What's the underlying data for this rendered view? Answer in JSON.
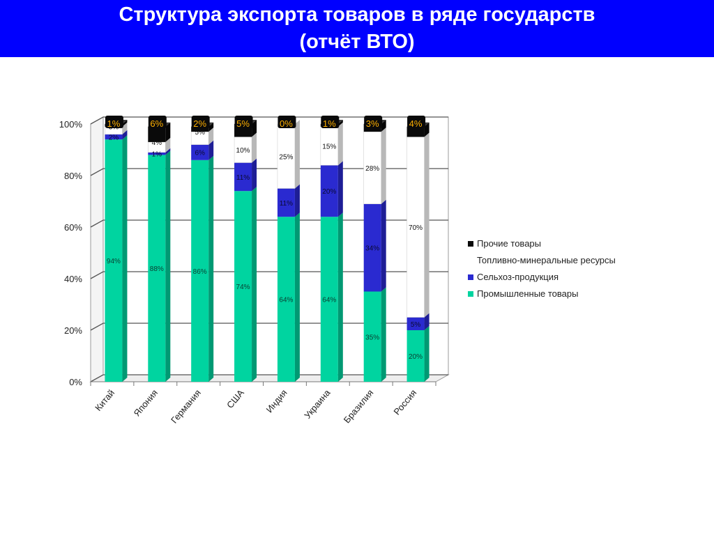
{
  "title": {
    "line1": "Структура экспорта товаров в ряде государств",
    "line2": "(отчёт ВТО)"
  },
  "colors": {
    "title_bg": "#0000ff",
    "industrial": "#00d4a0",
    "agri": "#2a2ad0",
    "fuel": "#ffffff",
    "other": "#0a0a0a",
    "label_yellow": "#ffb000"
  },
  "chart_data": {
    "type": "bar",
    "stacked": true,
    "three_d": true,
    "categories": [
      "Китай",
      "Япония",
      "Германия",
      "США",
      "Индия",
      "Украина",
      "Бразилия",
      "Россия"
    ],
    "series": [
      {
        "name": "Промышленные товары",
        "color": "#00d4a0",
        "values": [
          94,
          88,
          86,
          74,
          64,
          64,
          35,
          20
        ]
      },
      {
        "name": "Сельхоз-продукция",
        "color": "#2a2ad0",
        "values": [
          2,
          1,
          6,
          11,
          11,
          20,
          34,
          5
        ]
      },
      {
        "name": "Топливно-минеральные ресурсы",
        "color": "#ffffff",
        "values": [
          3,
          4,
          5,
          10,
          25,
          15,
          28,
          70
        ]
      },
      {
        "name": "Прочие товары",
        "color": "#0a0a0a",
        "values": [
          1,
          6,
          2,
          5,
          0,
          1,
          3,
          4
        ]
      }
    ],
    "data_labels": [
      [
        "94%",
        "88%",
        "86%",
        "74%",
        "64%",
        "64%",
        "35%",
        "20%"
      ],
      [
        "2%",
        "1%",
        "6%",
        "11%",
        "11%",
        "20%",
        "34%",
        "5%"
      ],
      [
        "3%",
        "4%",
        "5%",
        "10%",
        "25%",
        "15%",
        "28%",
        "70%"
      ],
      [
        "1%",
        "6%",
        "2%",
        "5%",
        "0%",
        "1%",
        "3%",
        "4%"
      ]
    ],
    "y_ticks": [
      "0%",
      "20%",
      "40%",
      "60%",
      "80%",
      "100%"
    ],
    "ylim": [
      0,
      100
    ],
    "grid": true,
    "legend_position": "right"
  },
  "legend": [
    {
      "label": "Прочие товары",
      "color": "#0a0a0a"
    },
    {
      "label": "Топливно-минеральные ресурсы",
      "color": "#ffffff"
    },
    {
      "label": "Сельхоз-продукция",
      "color": "#2a2ad0"
    },
    {
      "label": "Промышленные товары",
      "color": "#00d4a0"
    }
  ]
}
